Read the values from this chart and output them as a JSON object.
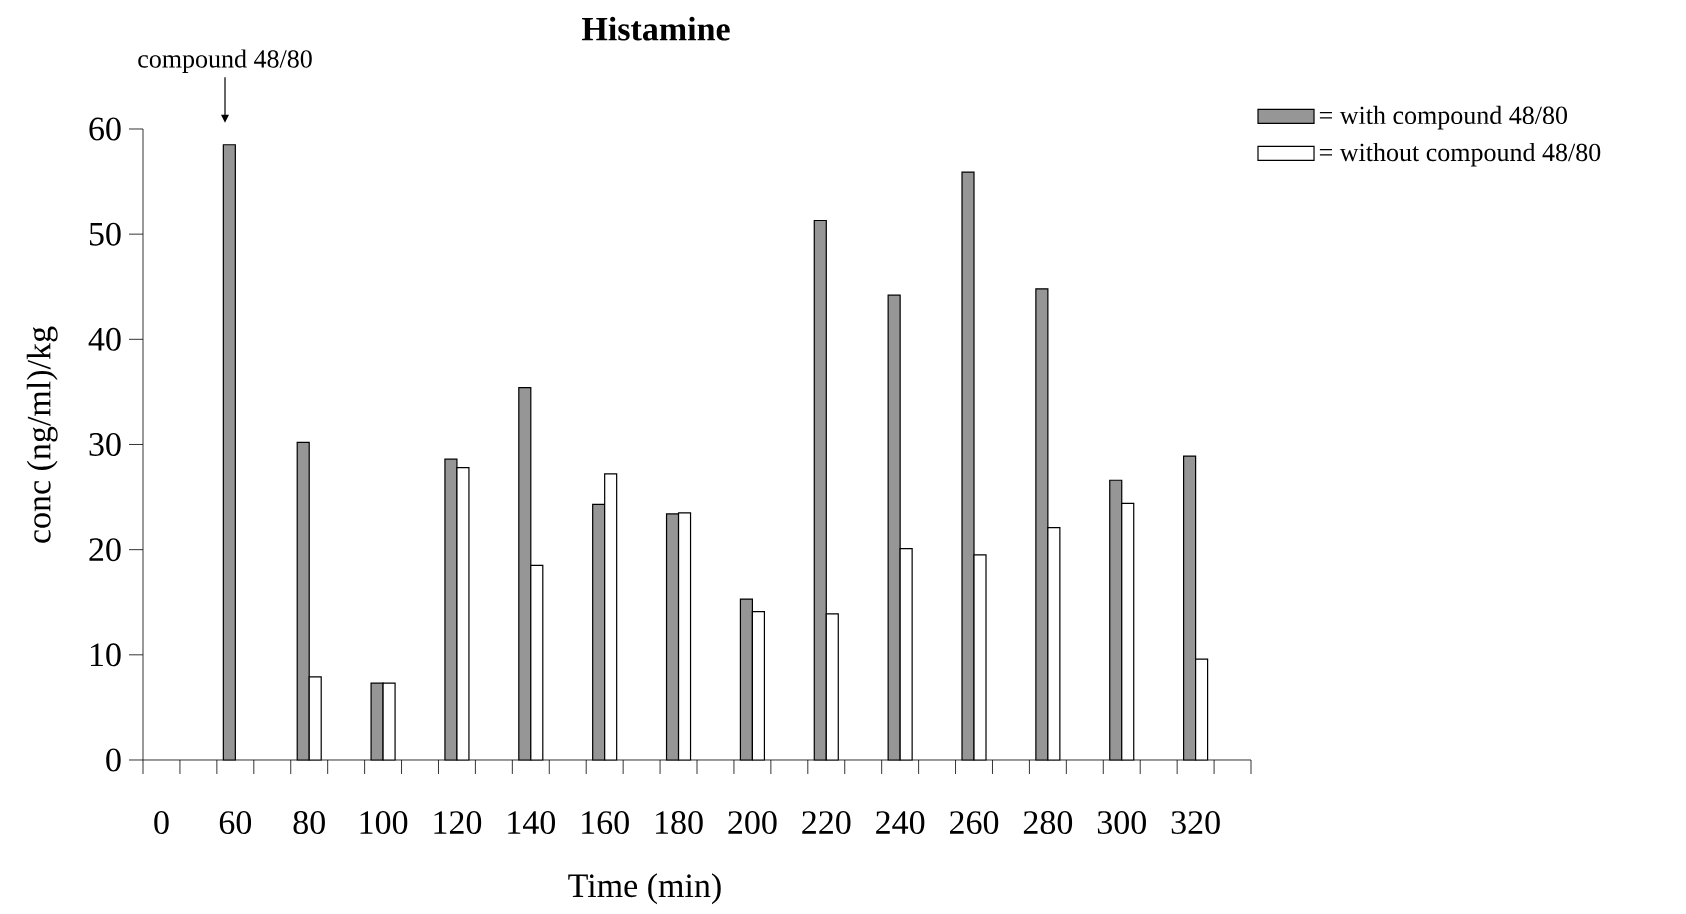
{
  "chart_data": {
    "type": "bar",
    "title": "Histamine",
    "xlabel": "Time (min)",
    "ylabel": "conc (ng/ml)/kg",
    "categories": [
      "0",
      "60",
      "80",
      "100",
      "120",
      "140",
      "160",
      "180",
      "200",
      "220",
      "240",
      "260",
      "280",
      "300",
      "320"
    ],
    "series": [
      {
        "name": "= with compound 48/80",
        "color": "#969696",
        "values": [
          null,
          58.5,
          30.2,
          7.3,
          28.6,
          35.4,
          24.3,
          23.4,
          15.3,
          51.3,
          44.2,
          55.9,
          44.8,
          26.6,
          28.9
        ]
      },
      {
        "name": "= without compound 48/80",
        "color": "#ffffff",
        "values": [
          null,
          null,
          7.9,
          7.3,
          27.8,
          18.5,
          27.2,
          23.5,
          14.1,
          13.9,
          20.1,
          19.5,
          22.1,
          24.4,
          9.6
        ]
      }
    ],
    "annotations": [
      "compound 48/80"
    ],
    "ylim": [
      0,
      60
    ],
    "yticks": [
      0,
      10,
      20,
      30,
      40,
      50,
      60
    ],
    "grid": false,
    "legend": "top right"
  }
}
